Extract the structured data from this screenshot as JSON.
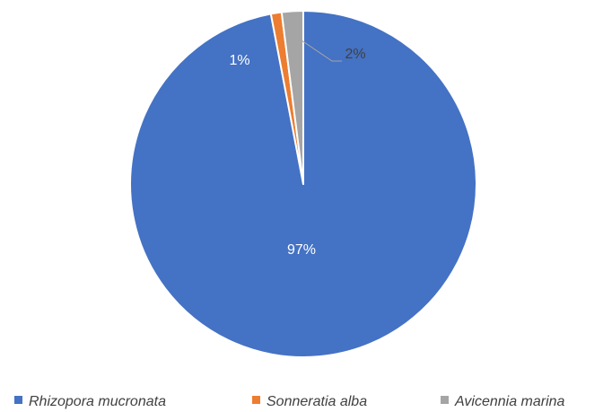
{
  "chart_data": {
    "type": "pie",
    "title": "",
    "start_angle_deg": 0,
    "direction": "clockwise",
    "legend_position": "bottom",
    "slices": [
      {
        "name": "Rhizopora mucronata",
        "value": 97,
        "label": "97%",
        "color": "#4472C4"
      },
      {
        "name": "Sonneratia alba",
        "value": 1,
        "label": "1%",
        "color": "#ED7D31"
      },
      {
        "name": "Avicennia marina",
        "value": 2,
        "label": "2%",
        "color": "#A5A5A5"
      }
    ]
  }
}
